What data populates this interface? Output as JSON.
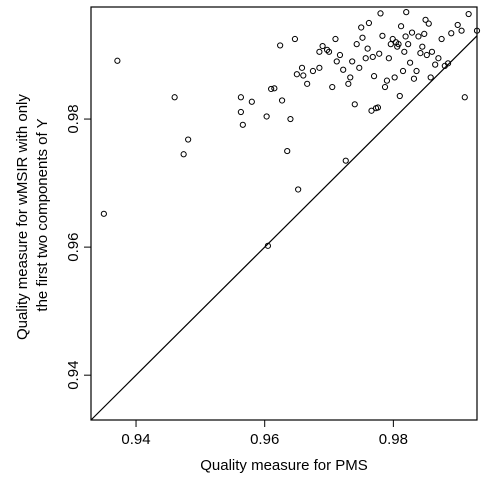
{
  "chart_data": {
    "type": "scatter",
    "title": "",
    "xlabel": "Quality measure for PMS",
    "ylabel_lines": [
      "Quality measure for wMSIR with only",
      "the first two components of Y"
    ],
    "xlim": [
      0.933,
      0.993
    ],
    "ylim": [
      0.933,
      0.9975
    ],
    "xticks": [
      0.94,
      0.96,
      0.98
    ],
    "xtick_labels": [
      "0.94",
      "0.96",
      "0.98"
    ],
    "yticks": [
      0.94,
      0.96,
      0.98
    ],
    "ytick_labels": [
      "0.94",
      "0.96",
      "0.98"
    ],
    "grid": false,
    "marker": "open-circle",
    "reference_line": {
      "type": "identity",
      "slope": 1,
      "intercept": 0
    },
    "points": [
      [
        0.935,
        0.9652
      ],
      [
        0.9371,
        0.9891
      ],
      [
        0.946,
        0.9834
      ],
      [
        0.9474,
        0.9745
      ],
      [
        0.9481,
        0.9768
      ],
      [
        0.9563,
        0.9834
      ],
      [
        0.9563,
        0.9811
      ],
      [
        0.9566,
        0.9791
      ],
      [
        0.958,
        0.9827
      ],
      [
        0.9603,
        0.9804
      ],
      [
        0.961,
        0.9847
      ],
      [
        0.9615,
        0.9848
      ],
      [
        0.9605,
        0.9602
      ],
      [
        0.9624,
        0.9915
      ],
      [
        0.9627,
        0.9829
      ],
      [
        0.9635,
        0.975
      ],
      [
        0.964,
        0.98
      ],
      [
        0.9647,
        0.9925
      ],
      [
        0.965,
        0.987
      ],
      [
        0.9652,
        0.969
      ],
      [
        0.966,
        0.9868
      ],
      [
        0.9658,
        0.988
      ],
      [
        0.9666,
        0.9855
      ],
      [
        0.9675,
        0.9875
      ],
      [
        0.9685,
        0.988
      ],
      [
        0.9685,
        0.9905
      ],
      [
        0.969,
        0.9914
      ],
      [
        0.9697,
        0.9908
      ],
      [
        0.97,
        0.9905
      ],
      [
        0.9705,
        0.985
      ],
      [
        0.971,
        0.9925
      ],
      [
        0.9712,
        0.989
      ],
      [
        0.9717,
        0.99
      ],
      [
        0.9722,
        0.9877
      ],
      [
        0.9726,
        0.9735
      ],
      [
        0.973,
        0.9855
      ],
      [
        0.9733,
        0.9865
      ],
      [
        0.9736,
        0.989
      ],
      [
        0.974,
        0.9823
      ],
      [
        0.9743,
        0.9917
      ],
      [
        0.9747,
        0.988
      ],
      [
        0.975,
        0.9943
      ],
      [
        0.9752,
        0.9927
      ],
      [
        0.9757,
        0.9895
      ],
      [
        0.976,
        0.991
      ],
      [
        0.9762,
        0.995
      ],
      [
        0.9766,
        0.9813
      ],
      [
        0.9768,
        0.9897
      ],
      [
        0.977,
        0.9867
      ],
      [
        0.9773,
        0.9817
      ],
      [
        0.9776,
        0.9818
      ],
      [
        0.9778,
        0.9902
      ],
      [
        0.978,
        0.9965
      ],
      [
        0.9783,
        0.993
      ],
      [
        0.9787,
        0.985
      ],
      [
        0.979,
        0.986
      ],
      [
        0.9793,
        0.9895
      ],
      [
        0.9796,
        0.9917
      ],
      [
        0.9799,
        0.9925
      ],
      [
        0.9802,
        0.9865
      ],
      [
        0.9804,
        0.992
      ],
      [
        0.9806,
        0.9913
      ],
      [
        0.9808,
        0.9917
      ],
      [
        0.981,
        0.9836
      ],
      [
        0.9812,
        0.9945
      ],
      [
        0.9815,
        0.9875
      ],
      [
        0.9817,
        0.9905
      ],
      [
        0.9819,
        0.9929
      ],
      [
        0.982,
        0.9967
      ],
      [
        0.9823,
        0.9917
      ],
      [
        0.9826,
        0.9888
      ],
      [
        0.9829,
        0.9935
      ],
      [
        0.9832,
        0.9863
      ],
      [
        0.9836,
        0.9875
      ],
      [
        0.9839,
        0.9929
      ],
      [
        0.9842,
        0.9903
      ],
      [
        0.9845,
        0.9913
      ],
      [
        0.9848,
        0.9933
      ],
      [
        0.985,
        0.9955
      ],
      [
        0.9852,
        0.99
      ],
      [
        0.9855,
        0.9949
      ],
      [
        0.9858,
        0.9865
      ],
      [
        0.986,
        0.9905
      ],
      [
        0.9865,
        0.9885
      ],
      [
        0.987,
        0.9895
      ],
      [
        0.9875,
        0.9925
      ],
      [
        0.988,
        0.9883
      ],
      [
        0.9885,
        0.9887
      ],
      [
        0.989,
        0.9934
      ],
      [
        0.99,
        0.9947
      ],
      [
        0.9906,
        0.9938
      ],
      [
        0.9911,
        0.9834
      ],
      [
        0.9917,
        0.9964
      ],
      [
        0.993,
        0.9938
      ]
    ]
  }
}
